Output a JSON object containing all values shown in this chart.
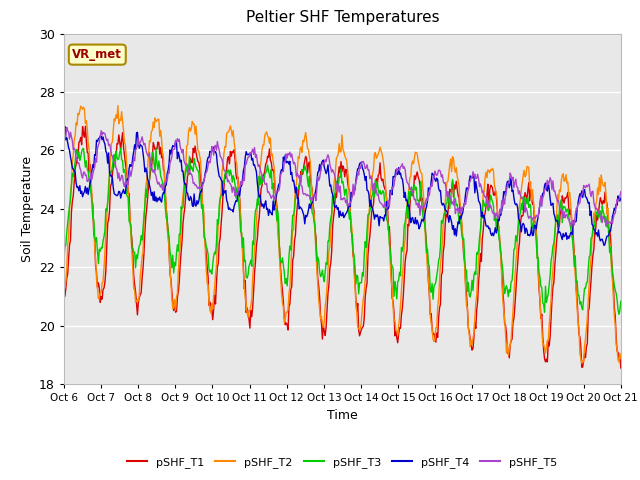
{
  "title": "Peltier SHF Temperatures",
  "xlabel": "Time",
  "ylabel": "Soil Temperature",
  "ylim": [
    18,
    30
  ],
  "xlim": [
    0,
    15
  ],
  "fig_bg_color": "#ffffff",
  "plot_bg_color": "#e8e8e8",
  "annotation_text": "VR_met",
  "annotation_bg": "#ffffcc",
  "annotation_border": "#aa8800",
  "annotation_text_color": "#990000",
  "tick_labels": [
    "Oct 6",
    "Oct 7",
    "Oct 8",
    "Oct 9",
    "Oct 10",
    "Oct 11",
    "Oct 12",
    "Oct 13",
    "Oct 14",
    "Oct 15",
    "Oct 16",
    "Oct 17",
    "Oct 18",
    "Oct 19",
    "Oct 20",
    "Oct 21"
  ],
  "legend_labels": [
    "pSHF_T1",
    "pSHF_T2",
    "pSHF_T3",
    "pSHF_T4",
    "pSHF_T5"
  ],
  "line_colors": [
    "#dd0000",
    "#ff8800",
    "#00cc00",
    "#0000cc",
    "#aa44cc"
  ],
  "grid_color": "#ffffff",
  "num_points": 600,
  "yticks": [
    18,
    20,
    22,
    24,
    26,
    28,
    30
  ]
}
